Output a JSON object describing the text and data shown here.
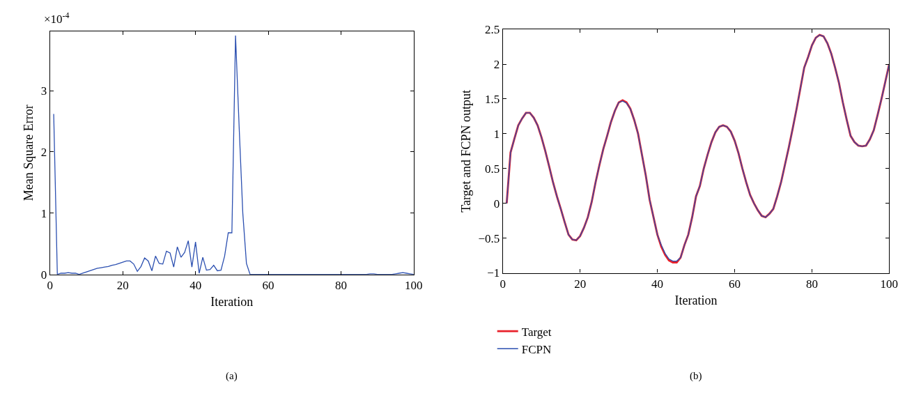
{
  "chart_data": [
    {
      "type": "line",
      "xlabel": "Iteration",
      "ylabel": "Mean Square Error",
      "annotations": [
        "×10$^{-4}$",
        "(a)"
      ],
      "x": [
        1,
        2,
        3,
        4,
        5,
        6,
        7,
        8,
        9,
        10,
        11,
        12,
        13,
        14,
        15,
        16,
        17,
        18,
        19,
        20,
        21,
        22,
        23,
        24,
        25,
        26,
        27,
        28,
        29,
        30,
        31,
        32,
        33,
        34,
        35,
        36,
        37,
        38,
        39,
        40,
        41,
        42,
        43,
        44,
        45,
        46,
        47,
        48,
        49,
        50,
        51,
        52,
        53,
        54,
        55,
        56,
        57,
        58,
        59,
        60,
        61,
        62,
        63,
        64,
        65,
        66,
        67,
        68,
        69,
        70,
        71,
        72,
        73,
        74,
        75,
        76,
        77,
        78,
        79,
        80,
        81,
        82,
        83,
        84,
        85,
        86,
        87,
        88,
        89,
        90,
        91,
        92,
        93,
        94,
        95,
        96,
        97,
        98,
        99,
        100
      ],
      "series": [
        {
          "color": "#2b4fb0",
          "values": [
            2.62,
            0.0,
            0.02,
            0.02,
            0.03,
            0.02,
            0.02,
            0.0,
            0.02,
            0.04,
            0.06,
            0.08,
            0.1,
            0.11,
            0.12,
            0.13,
            0.15,
            0.16,
            0.18,
            0.2,
            0.22,
            0.22,
            0.17,
            0.05,
            0.13,
            0.27,
            0.22,
            0.06,
            0.3,
            0.18,
            0.17,
            0.38,
            0.35,
            0.12,
            0.45,
            0.28,
            0.36,
            0.55,
            0.12,
            0.53,
            0.02,
            0.28,
            0.07,
            0.08,
            0.15,
            0.06,
            0.07,
            0.3,
            0.68,
            0.68,
            3.9,
            2.4,
            1.0,
            0.18,
            0.0,
            0.0,
            0.0,
            0.0,
            0.0,
            0.0,
            0.0,
            0.0,
            0.0,
            0.0,
            0.0,
            0.0,
            0.0,
            0.0,
            0.0,
            0.0,
            0.0,
            0.0,
            0.0,
            0.0,
            0.0,
            0.0,
            0.0,
            0.0,
            0.0,
            0.0,
            0.0,
            0.0,
            0.0,
            0.0,
            0.0,
            0.0,
            0.0,
            0.01,
            0.01,
            0.0,
            0.0,
            0.0,
            0.0,
            0.0,
            0.01,
            0.02,
            0.03,
            0.02,
            0.01,
            0.0
          ]
        }
      ],
      "xlim": [
        0,
        100
      ],
      "xticks": [
        0,
        20,
        40,
        60,
        80,
        100
      ],
      "ylim": [
        0,
        3.97
      ],
      "yticks": [
        0,
        1,
        2,
        3
      ]
    },
    {
      "type": "line",
      "xlabel": "Iteration",
      "ylabel": "Target and FCPN output",
      "annotations": [
        "(b)"
      ],
      "legend": "bottom left",
      "x": [
        1,
        2,
        3,
        4,
        5,
        6,
        7,
        8,
        9,
        10,
        11,
        12,
        13,
        14,
        15,
        16,
        17,
        18,
        19,
        20,
        21,
        22,
        23,
        24,
        25,
        26,
        27,
        28,
        29,
        30,
        31,
        32,
        33,
        34,
        35,
        36,
        37,
        38,
        39,
        40,
        41,
        42,
        43,
        44,
        45,
        46,
        47,
        48,
        49,
        50,
        51,
        52,
        53,
        54,
        55,
        56,
        57,
        58,
        59,
        60,
        61,
        62,
        63,
        64,
        65,
        66,
        67,
        68,
        69,
        70,
        71,
        72,
        73,
        74,
        75,
        76,
        77,
        78,
        79,
        80,
        81,
        82,
        83,
        84,
        85,
        86,
        87,
        88,
        89,
        90,
        91,
        92,
        93,
        94,
        95,
        96,
        97,
        98,
        99,
        100
      ],
      "series": [
        {
          "name": "Target",
          "color": "#e8202a",
          "values": [
            0,
            0.73,
            0.93,
            1.12,
            1.22,
            1.3,
            1.3,
            1.23,
            1.12,
            0.95,
            0.75,
            0.53,
            0.3,
            0.1,
            -0.08,
            -0.27,
            -0.45,
            -0.52,
            -0.53,
            -0.47,
            -0.35,
            -0.2,
            0.02,
            0.3,
            0.55,
            0.78,
            0.97,
            1.17,
            1.33,
            1.45,
            1.48,
            1.45,
            1.36,
            1.2,
            1.0,
            0.7,
            0.4,
            0.05,
            -0.2,
            -0.45,
            -0.62,
            -0.74,
            -0.82,
            -0.85,
            -0.85,
            -0.78,
            -0.6,
            -0.45,
            -0.2,
            0.1,
            0.25,
            0.5,
            0.7,
            0.88,
            1.02,
            1.1,
            1.12,
            1.1,
            1.03,
            0.9,
            0.72,
            0.5,
            0.3,
            0.12,
            0.0,
            -0.1,
            -0.18,
            -0.2,
            -0.15,
            -0.08,
            0.1,
            0.3,
            0.55,
            0.8,
            1.07,
            1.35,
            1.65,
            1.95,
            2.1,
            2.27,
            2.38,
            2.42,
            2.4,
            2.3,
            2.15,
            1.95,
            1.73,
            1.45,
            1.2,
            0.97,
            0.88,
            0.83,
            0.82,
            0.83,
            0.92,
            1.05,
            1.27,
            1.5,
            1.75,
            2.0
          ]
        },
        {
          "name": "FCPN",
          "color": "#2b4fb0",
          "values": [
            0,
            0.73,
            0.93,
            1.12,
            1.22,
            1.3,
            1.3,
            1.23,
            1.12,
            0.95,
            0.75,
            0.53,
            0.3,
            0.1,
            -0.08,
            -0.27,
            -0.45,
            -0.52,
            -0.53,
            -0.47,
            -0.35,
            -0.2,
            0.02,
            0.3,
            0.55,
            0.78,
            0.97,
            1.17,
            1.33,
            1.45,
            1.47,
            1.44,
            1.36,
            1.2,
            1.0,
            0.7,
            0.4,
            0.05,
            -0.2,
            -0.45,
            -0.6,
            -0.72,
            -0.8,
            -0.83,
            -0.83,
            -0.78,
            -0.6,
            -0.45,
            -0.2,
            0.1,
            0.25,
            0.5,
            0.7,
            0.88,
            1.02,
            1.1,
            1.12,
            1.1,
            1.03,
            0.9,
            0.72,
            0.5,
            0.3,
            0.12,
            0.0,
            -0.1,
            -0.18,
            -0.2,
            -0.15,
            -0.08,
            0.1,
            0.3,
            0.55,
            0.8,
            1.07,
            1.35,
            1.65,
            1.95,
            2.1,
            2.27,
            2.38,
            2.42,
            2.4,
            2.3,
            2.15,
            1.95,
            1.73,
            1.45,
            1.2,
            0.97,
            0.88,
            0.83,
            0.82,
            0.83,
            0.92,
            1.05,
            1.27,
            1.5,
            1.75,
            2.0
          ]
        }
      ],
      "xlim": [
        0,
        100
      ],
      "xticks": [
        0,
        20,
        40,
        60,
        80,
        100
      ],
      "ylim": [
        -1,
        2.5
      ],
      "yticks": [
        -1,
        -0.5,
        0,
        0.5,
        1,
        1.5,
        2,
        2.5
      ]
    }
  ]
}
